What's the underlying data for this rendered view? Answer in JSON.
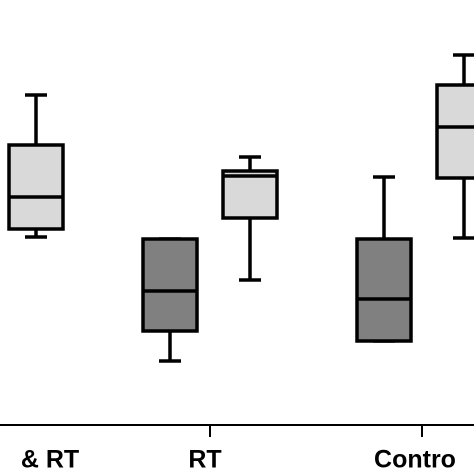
{
  "chart_data": {
    "type": "box",
    "categories": [
      "& RT",
      "RT",
      "Contro"
    ],
    "ylim": [
      0,
      100
    ],
    "series": [
      {
        "color": "#808080",
        "values": [
          null,
          {
            "min": 16,
            "q1": 23.5,
            "median": 33.5,
            "q3": 46.5,
            "max": 46.5
          },
          {
            "min": 21,
            "q1": 21,
            "median": 31.5,
            "q3": 46.5,
            "max": 62
          }
        ]
      },
      {
        "color": "#d9d9d9",
        "values": [
          {
            "min": 47,
            "q1": 49,
            "median": 57,
            "q3": 70,
            "max": 82.5
          },
          {
            "min": 36.25,
            "q1": 51.75,
            "median": 62.25,
            "q3": 63.5,
            "max": 67
          },
          {
            "min": 46.75,
            "q1": 61.75,
            "median": 74.5,
            "q3": 85,
            "max": 92.5
          }
        ]
      }
    ]
  }
}
